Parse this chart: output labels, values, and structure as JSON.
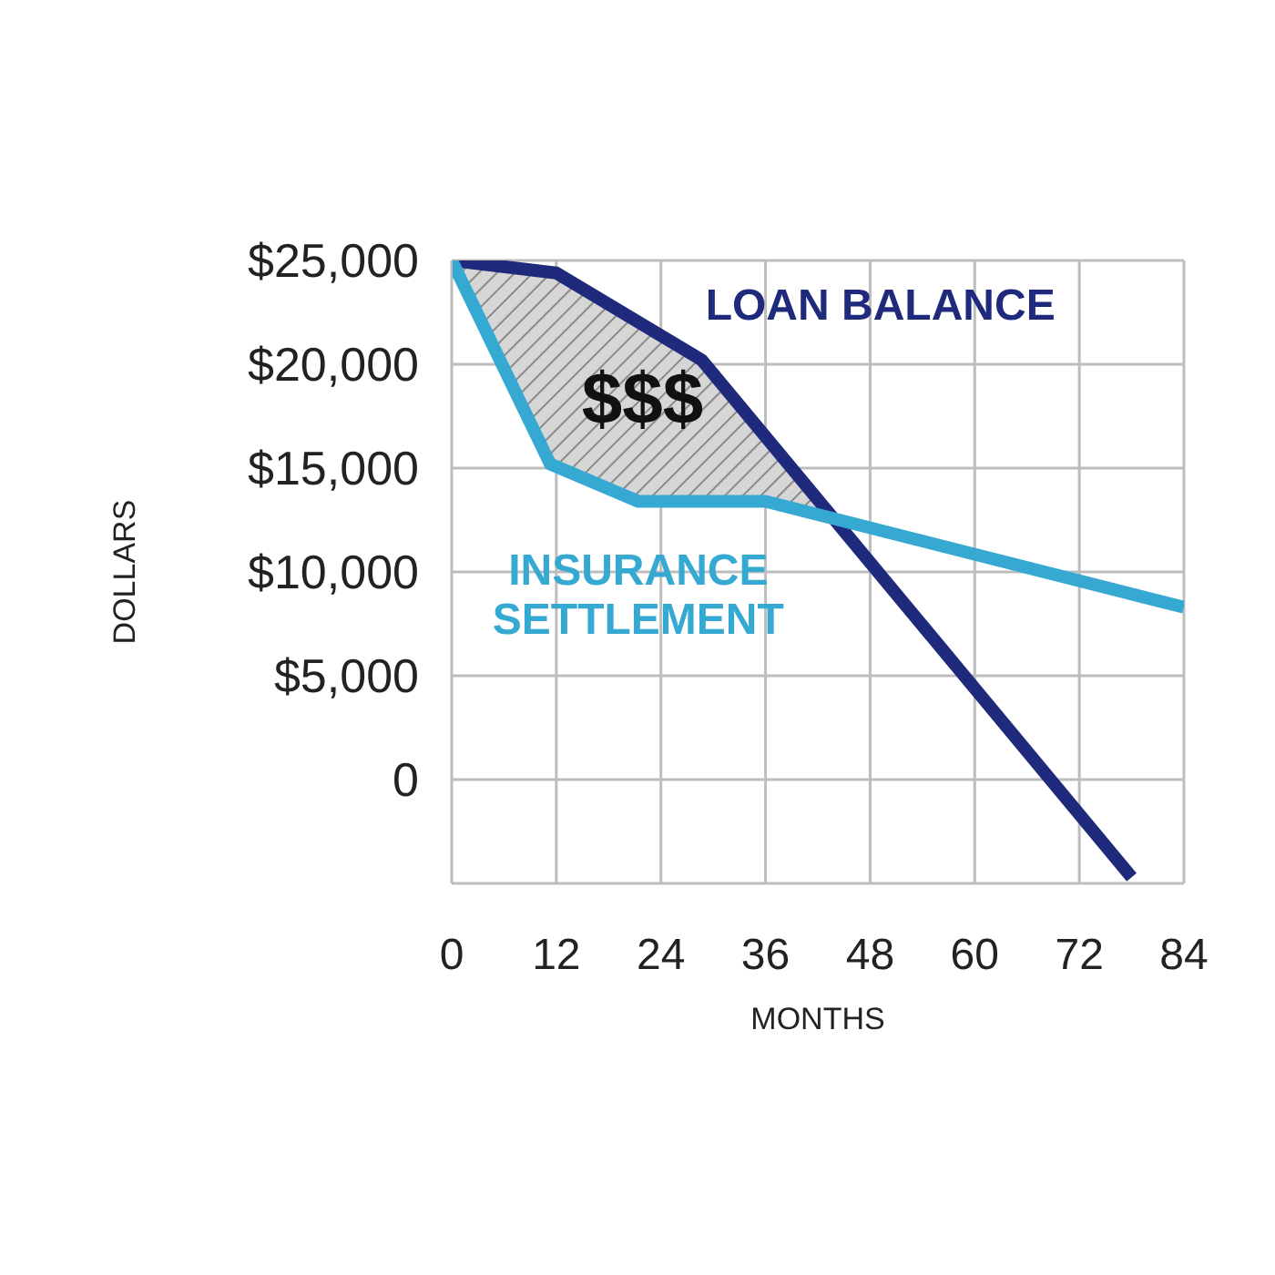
{
  "chart_data": {
    "type": "line",
    "xlabel": "MONTHS",
    "ylabel": "DOLLARS",
    "annotations": [
      "$$$"
    ],
    "series": [
      {
        "name": "LOAN BALANCE",
        "color": "#1f2a7c",
        "x": [
          0,
          12,
          28.7,
          78
        ],
        "values": [
          25000,
          24400,
          20200,
          -4700
        ]
      },
      {
        "name": "INSURANCE SETTLEMENT",
        "color": "#36a9d3",
        "x": [
          0,
          11.3,
          21.4,
          36,
          84
        ],
        "values": [
          25000,
          15200,
          13400,
          13400,
          8300
        ]
      }
    ],
    "xlim": [
      0,
      84
    ],
    "xticks": [
      0,
      12,
      24,
      36,
      48,
      60,
      72,
      84
    ],
    "ylim": [
      -5000,
      25000
    ],
    "yticks": [
      {
        "value": -5000,
        "label": null
      },
      {
        "value": 0,
        "label": "0"
      },
      {
        "value": 5000,
        "label": "$5,000"
      },
      {
        "value": 10000,
        "label": "$10,000"
      },
      {
        "value": 15000,
        "label": "$15,000"
      },
      {
        "value": 20000,
        "label": "$20,000"
      },
      {
        "value": 25000,
        "label": "$25,000"
      }
    ],
    "grid": true,
    "legend": false,
    "marker": "none",
    "line_style": "solid"
  }
}
